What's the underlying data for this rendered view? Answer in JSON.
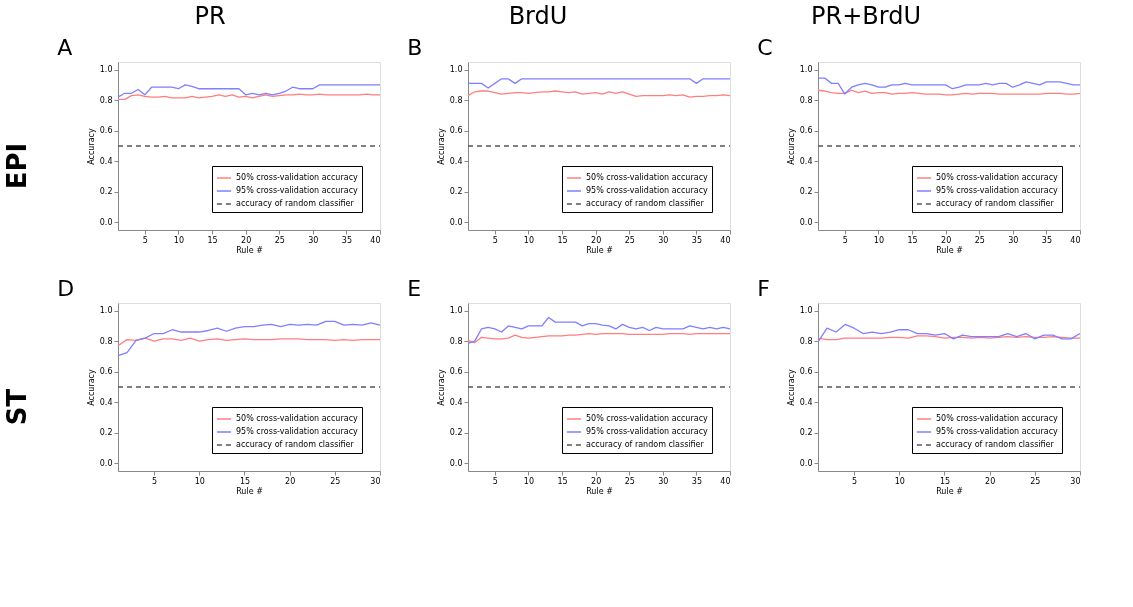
{
  "chart_data": [
    {
      "type": "line",
      "title": "A",
      "annotations": [
        "PR",
        "EPI"
      ],
      "xlabel": "Rule #",
      "ylabel": "Accuracy",
      "x": [
        1,
        2,
        3,
        4,
        5,
        6,
        7,
        8,
        9,
        10,
        11,
        12,
        13,
        14,
        15,
        16,
        17,
        18,
        19,
        20,
        21,
        22,
        23,
        24,
        25,
        26,
        27,
        28,
        29,
        30,
        31,
        32,
        33,
        34,
        35,
        36,
        37,
        38,
        39,
        40
      ],
      "xlim": [
        1,
        40
      ],
      "xticks": [
        5,
        10,
        15,
        20,
        25,
        30,
        35,
        40
      ],
      "ylim": [
        -0.05,
        1.05
      ],
      "yticks": [
        {
          "value": 0,
          "label": "0.0"
        },
        {
          "value": 0.2,
          "label": "0.2"
        },
        {
          "value": 0.4,
          "label": "0.4"
        },
        {
          "value": 0.6,
          "label": "0.6"
        },
        {
          "value": 0.8,
          "label": "0.8"
        },
        {
          "value": 1,
          "label": "1.0"
        }
      ],
      "grid": false,
      "legend": "bottom right",
      "line_style": "solid",
      "series": [
        {
          "name": "50% cross-validation accuracy",
          "color": "#ff7f7f",
          "values": [
            0.805,
            0.805,
            0.83,
            0.835,
            0.825,
            0.82,
            0.82,
            0.825,
            0.815,
            0.815,
            0.815,
            0.825,
            0.815,
            0.82,
            0.825,
            0.835,
            0.825,
            0.835,
            0.82,
            0.825,
            0.815,
            0.825,
            0.835,
            0.825,
            0.83,
            0.835,
            0.835,
            0.84,
            0.835,
            0.835,
            0.84,
            0.835,
            0.835,
            0.835,
            0.835,
            0.835,
            0.835,
            0.84,
            0.835,
            0.835
          ]
        },
        {
          "name": "95% cross-validation accuracy",
          "color": "#7f7fff",
          "values": [
            0.82,
            0.845,
            0.845,
            0.87,
            0.835,
            0.885,
            0.885,
            0.885,
            0.885,
            0.875,
            0.9,
            0.89,
            0.875,
            0.875,
            0.875,
            0.875,
            0.875,
            0.875,
            0.875,
            0.835,
            0.845,
            0.835,
            0.845,
            0.835,
            0.845,
            0.86,
            0.885,
            0.875,
            0.875,
            0.875,
            0.9,
            0.9,
            0.9,
            0.9,
            0.9,
            0.9,
            0.9,
            0.9,
            0.9,
            0.9
          ]
        }
      ],
      "ref_lines": [
        {
          "axis": "y",
          "value": 0.5,
          "label": "accuracy of random classifier",
          "color": "#555555",
          "line_style": "dashed"
        }
      ]
    },
    {
      "type": "line",
      "title": "B",
      "annotations": [
        "BrdU"
      ],
      "xlabel": "Rule #",
      "ylabel": "Accuracy",
      "x": [
        1,
        2,
        3,
        4,
        5,
        6,
        7,
        8,
        9,
        10,
        11,
        12,
        13,
        14,
        15,
        16,
        17,
        18,
        19,
        20,
        21,
        22,
        23,
        24,
        25,
        26,
        27,
        28,
        29,
        30,
        31,
        32,
        33,
        34,
        35,
        36,
        37,
        38,
        39,
        40
      ],
      "xlim": [
        1,
        40
      ],
      "xticks": [
        5,
        10,
        15,
        20,
        25,
        30,
        35,
        40
      ],
      "ylim": [
        -0.05,
        1.05
      ],
      "yticks": [
        {
          "value": 0,
          "label": "0.0"
        },
        {
          "value": 0.2,
          "label": "0.2"
        },
        {
          "value": 0.4,
          "label": "0.4"
        },
        {
          "value": 0.6,
          "label": "0.6"
        },
        {
          "value": 0.8,
          "label": "0.8"
        },
        {
          "value": 1,
          "label": "1.0"
        }
      ],
      "grid": false,
      "legend": "bottom right",
      "line_style": "solid",
      "series": [
        {
          "name": "50% cross-validation accuracy",
          "color": "#ff7f7f",
          "values": [
            0.83,
            0.855,
            0.86,
            0.86,
            0.85,
            0.84,
            0.845,
            0.85,
            0.85,
            0.845,
            0.85,
            0.855,
            0.855,
            0.86,
            0.855,
            0.85,
            0.855,
            0.84,
            0.845,
            0.85,
            0.84,
            0.855,
            0.845,
            0.855,
            0.84,
            0.825,
            0.83,
            0.83,
            0.83,
            0.83,
            0.835,
            0.83,
            0.835,
            0.82,
            0.825,
            0.825,
            0.83,
            0.83,
            0.835,
            0.83
          ]
        },
        {
          "name": "95% cross-validation accuracy",
          "color": "#7f7fff",
          "values": [
            0.91,
            0.91,
            0.91,
            0.88,
            0.91,
            0.94,
            0.94,
            0.91,
            0.94,
            0.94,
            0.94,
            0.94,
            0.94,
            0.94,
            0.94,
            0.94,
            0.94,
            0.94,
            0.94,
            0.94,
            0.94,
            0.94,
            0.94,
            0.94,
            0.94,
            0.94,
            0.94,
            0.94,
            0.94,
            0.94,
            0.94,
            0.94,
            0.94,
            0.94,
            0.91,
            0.94,
            0.94,
            0.94,
            0.94,
            0.94
          ]
        }
      ],
      "ref_lines": [
        {
          "axis": "y",
          "value": 0.5,
          "label": "accuracy of random classifier",
          "color": "#555555",
          "line_style": "dashed"
        }
      ]
    },
    {
      "type": "line",
      "title": "C",
      "annotations": [
        "PR+BrdU"
      ],
      "xlabel": "Rule #",
      "ylabel": "Accuracy",
      "x": [
        1,
        2,
        3,
        4,
        5,
        6,
        7,
        8,
        9,
        10,
        11,
        12,
        13,
        14,
        15,
        16,
        17,
        18,
        19,
        20,
        21,
        22,
        23,
        24,
        25,
        26,
        27,
        28,
        29,
        30,
        31,
        32,
        33,
        34,
        35,
        36,
        37,
        38,
        39,
        40
      ],
      "xlim": [
        1,
        40
      ],
      "xticks": [
        5,
        10,
        15,
        20,
        25,
        30,
        35,
        40
      ],
      "ylim": [
        -0.05,
        1.05
      ],
      "yticks": [
        {
          "value": 0,
          "label": "0.0"
        },
        {
          "value": 0.2,
          "label": "0.2"
        },
        {
          "value": 0.4,
          "label": "0.4"
        },
        {
          "value": 0.6,
          "label": "0.6"
        },
        {
          "value": 0.8,
          "label": "0.8"
        },
        {
          "value": 1,
          "label": "1.0"
        }
      ],
      "grid": false,
      "legend": "bottom right",
      "line_style": "solid",
      "series": [
        {
          "name": "50% cross-validation accuracy",
          "color": "#ff7f7f",
          "values": [
            0.865,
            0.86,
            0.85,
            0.845,
            0.845,
            0.865,
            0.85,
            0.86,
            0.845,
            0.85,
            0.85,
            0.84,
            0.845,
            0.845,
            0.85,
            0.845,
            0.84,
            0.84,
            0.84,
            0.835,
            0.835,
            0.84,
            0.845,
            0.84,
            0.845,
            0.845,
            0.845,
            0.84,
            0.84,
            0.84,
            0.84,
            0.84,
            0.84,
            0.84,
            0.845,
            0.845,
            0.845,
            0.84,
            0.84,
            0.845
          ]
        },
        {
          "name": "95% cross-validation accuracy",
          "color": "#7f7fff",
          "values": [
            0.945,
            0.945,
            0.91,
            0.91,
            0.84,
            0.885,
            0.9,
            0.91,
            0.9,
            0.885,
            0.885,
            0.9,
            0.9,
            0.91,
            0.9,
            0.9,
            0.9,
            0.9,
            0.9,
            0.9,
            0.875,
            0.885,
            0.9,
            0.9,
            0.9,
            0.91,
            0.9,
            0.91,
            0.91,
            0.885,
            0.9,
            0.92,
            0.91,
            0.9,
            0.92,
            0.92,
            0.92,
            0.91,
            0.9,
            0.9
          ]
        }
      ],
      "ref_lines": [
        {
          "axis": "y",
          "value": 0.5,
          "label": "accuracy of random classifier",
          "color": "#555555",
          "line_style": "dashed"
        }
      ]
    },
    {
      "type": "line",
      "title": "D",
      "annotations": [
        "ST"
      ],
      "xlabel": "Rule #",
      "ylabel": "Accuracy",
      "x": [
        1,
        2,
        3,
        4,
        5,
        6,
        7,
        8,
        9,
        10,
        11,
        12,
        13,
        14,
        15,
        16,
        17,
        18,
        19,
        20,
        21,
        22,
        23,
        24,
        25,
        26,
        27,
        28,
        29,
        30
      ],
      "xlim": [
        1,
        30
      ],
      "xticks": [
        5,
        10,
        15,
        20,
        25,
        30
      ],
      "ylim": [
        -0.05,
        1.05
      ],
      "yticks": [
        {
          "value": 0,
          "label": "0.0"
        },
        {
          "value": 0.2,
          "label": "0.2"
        },
        {
          "value": 0.4,
          "label": "0.4"
        },
        {
          "value": 0.6,
          "label": "0.6"
        },
        {
          "value": 0.8,
          "label": "0.8"
        },
        {
          "value": 1,
          "label": "1.0"
        }
      ],
      "grid": false,
      "legend": "bottom right",
      "line_style": "solid",
      "series": [
        {
          "name": "50% cross-validation accuracy",
          "color": "#ff7f7f",
          "values": [
            0.77,
            0.81,
            0.805,
            0.82,
            0.8,
            0.815,
            0.815,
            0.805,
            0.82,
            0.8,
            0.81,
            0.815,
            0.805,
            0.81,
            0.815,
            0.81,
            0.81,
            0.81,
            0.815,
            0.815,
            0.815,
            0.81,
            0.81,
            0.81,
            0.805,
            0.81,
            0.805,
            0.81,
            0.81,
            0.81
          ]
        },
        {
          "name": "95% cross-validation accuracy",
          "color": "#7f7fff",
          "values": [
            0.705,
            0.725,
            0.805,
            0.82,
            0.85,
            0.85,
            0.875,
            0.86,
            0.86,
            0.86,
            0.87,
            0.885,
            0.865,
            0.885,
            0.895,
            0.895,
            0.905,
            0.91,
            0.895,
            0.91,
            0.905,
            0.91,
            0.905,
            0.93,
            0.93,
            0.905,
            0.91,
            0.905,
            0.92,
            0.905
          ]
        }
      ],
      "ref_lines": [
        {
          "axis": "y",
          "value": 0.5,
          "label": "accuracy of random classifier",
          "color": "#555555",
          "line_style": "dashed"
        }
      ]
    },
    {
      "type": "line",
      "title": "E",
      "xlabel": "Rule #",
      "ylabel": "Accuracy",
      "x": [
        1,
        2,
        3,
        4,
        5,
        6,
        7,
        8,
        9,
        10,
        11,
        12,
        13,
        14,
        15,
        16,
        17,
        18,
        19,
        20,
        21,
        22,
        23,
        24,
        25,
        26,
        27,
        28,
        29,
        30,
        31,
        32,
        33,
        34,
        35,
        36,
        37,
        38,
        39,
        40
      ],
      "xlim": [
        1,
        40
      ],
      "xticks": [
        5,
        10,
        15,
        20,
        25,
        30,
        35,
        40
      ],
      "ylim": [
        -0.05,
        1.05
      ],
      "yticks": [
        {
          "value": 0,
          "label": "0.0"
        },
        {
          "value": 0.2,
          "label": "0.2"
        },
        {
          "value": 0.4,
          "label": "0.4"
        },
        {
          "value": 0.6,
          "label": "0.6"
        },
        {
          "value": 0.8,
          "label": "0.8"
        },
        {
          "value": 1,
          "label": "1.0"
        }
      ],
      "grid": false,
      "legend": "bottom right",
      "line_style": "solid",
      "series": [
        {
          "name": "50% cross-validation accuracy",
          "color": "#ff7f7f",
          "values": [
            0.805,
            0.79,
            0.825,
            0.82,
            0.815,
            0.815,
            0.82,
            0.84,
            0.825,
            0.82,
            0.825,
            0.83,
            0.835,
            0.835,
            0.835,
            0.84,
            0.84,
            0.845,
            0.85,
            0.845,
            0.85,
            0.85,
            0.85,
            0.85,
            0.845,
            0.845,
            0.845,
            0.845,
            0.845,
            0.845,
            0.85,
            0.85,
            0.85,
            0.845,
            0.85,
            0.85,
            0.85,
            0.85,
            0.85,
            0.85
          ]
        },
        {
          "name": "95% cross-validation accuracy",
          "color": "#7f7fff",
          "values": [
            0.785,
            0.8,
            0.88,
            0.89,
            0.88,
            0.86,
            0.9,
            0.89,
            0.88,
            0.9,
            0.9,
            0.9,
            0.955,
            0.925,
            0.925,
            0.925,
            0.925,
            0.9,
            0.915,
            0.915,
            0.905,
            0.9,
            0.88,
            0.91,
            0.89,
            0.88,
            0.89,
            0.87,
            0.89,
            0.88,
            0.88,
            0.88,
            0.88,
            0.9,
            0.89,
            0.88,
            0.89,
            0.88,
            0.89,
            0.88
          ]
        }
      ],
      "ref_lines": [
        {
          "axis": "y",
          "value": 0.5,
          "label": "accuracy of random classifier",
          "color": "#555555",
          "line_style": "dashed"
        }
      ]
    },
    {
      "type": "line",
      "title": "F",
      "xlabel": "Rule #",
      "ylabel": "Accuracy",
      "x": [
        1,
        2,
        3,
        4,
        5,
        6,
        7,
        8,
        9,
        10,
        11,
        12,
        13,
        14,
        15,
        16,
        17,
        18,
        19,
        20,
        21,
        22,
        23,
        24,
        25,
        26,
        27,
        28,
        29,
        30
      ],
      "xlim": [
        1,
        30
      ],
      "xticks": [
        5,
        10,
        15,
        20,
        25,
        30
      ],
      "ylim": [
        -0.05,
        1.05
      ],
      "yticks": [
        {
          "value": 0,
          "label": "0.0"
        },
        {
          "value": 0.2,
          "label": "0.2"
        },
        {
          "value": 0.4,
          "label": "0.4"
        },
        {
          "value": 0.6,
          "label": "0.6"
        },
        {
          "value": 0.8,
          "label": "0.8"
        },
        {
          "value": 1,
          "label": "1.0"
        }
      ],
      "grid": false,
      "legend": "bottom right",
      "line_style": "solid",
      "series": [
        {
          "name": "50% cross-validation accuracy",
          "color": "#ff7f7f",
          "values": [
            0.82,
            0.81,
            0.81,
            0.82,
            0.82,
            0.82,
            0.82,
            0.82,
            0.825,
            0.825,
            0.82,
            0.835,
            0.835,
            0.83,
            0.82,
            0.825,
            0.825,
            0.82,
            0.825,
            0.82,
            0.825,
            0.83,
            0.825,
            0.83,
            0.825,
            0.825,
            0.83,
            0.825,
            0.82,
            0.82
          ]
        },
        {
          "name": "95% cross-validation accuracy",
          "color": "#7f7fff",
          "values": [
            0.795,
            0.885,
            0.86,
            0.91,
            0.885,
            0.85,
            0.86,
            0.85,
            0.86,
            0.875,
            0.875,
            0.85,
            0.85,
            0.84,
            0.85,
            0.815,
            0.84,
            0.83,
            0.83,
            0.83,
            0.83,
            0.85,
            0.83,
            0.85,
            0.815,
            0.84,
            0.84,
            0.815,
            0.815,
            0.85
          ]
        }
      ],
      "ref_lines": [
        {
          "axis": "y",
          "value": 0.5,
          "label": "accuracy of random classifier",
          "color": "#555555",
          "line_style": "dashed"
        }
      ]
    }
  ]
}
